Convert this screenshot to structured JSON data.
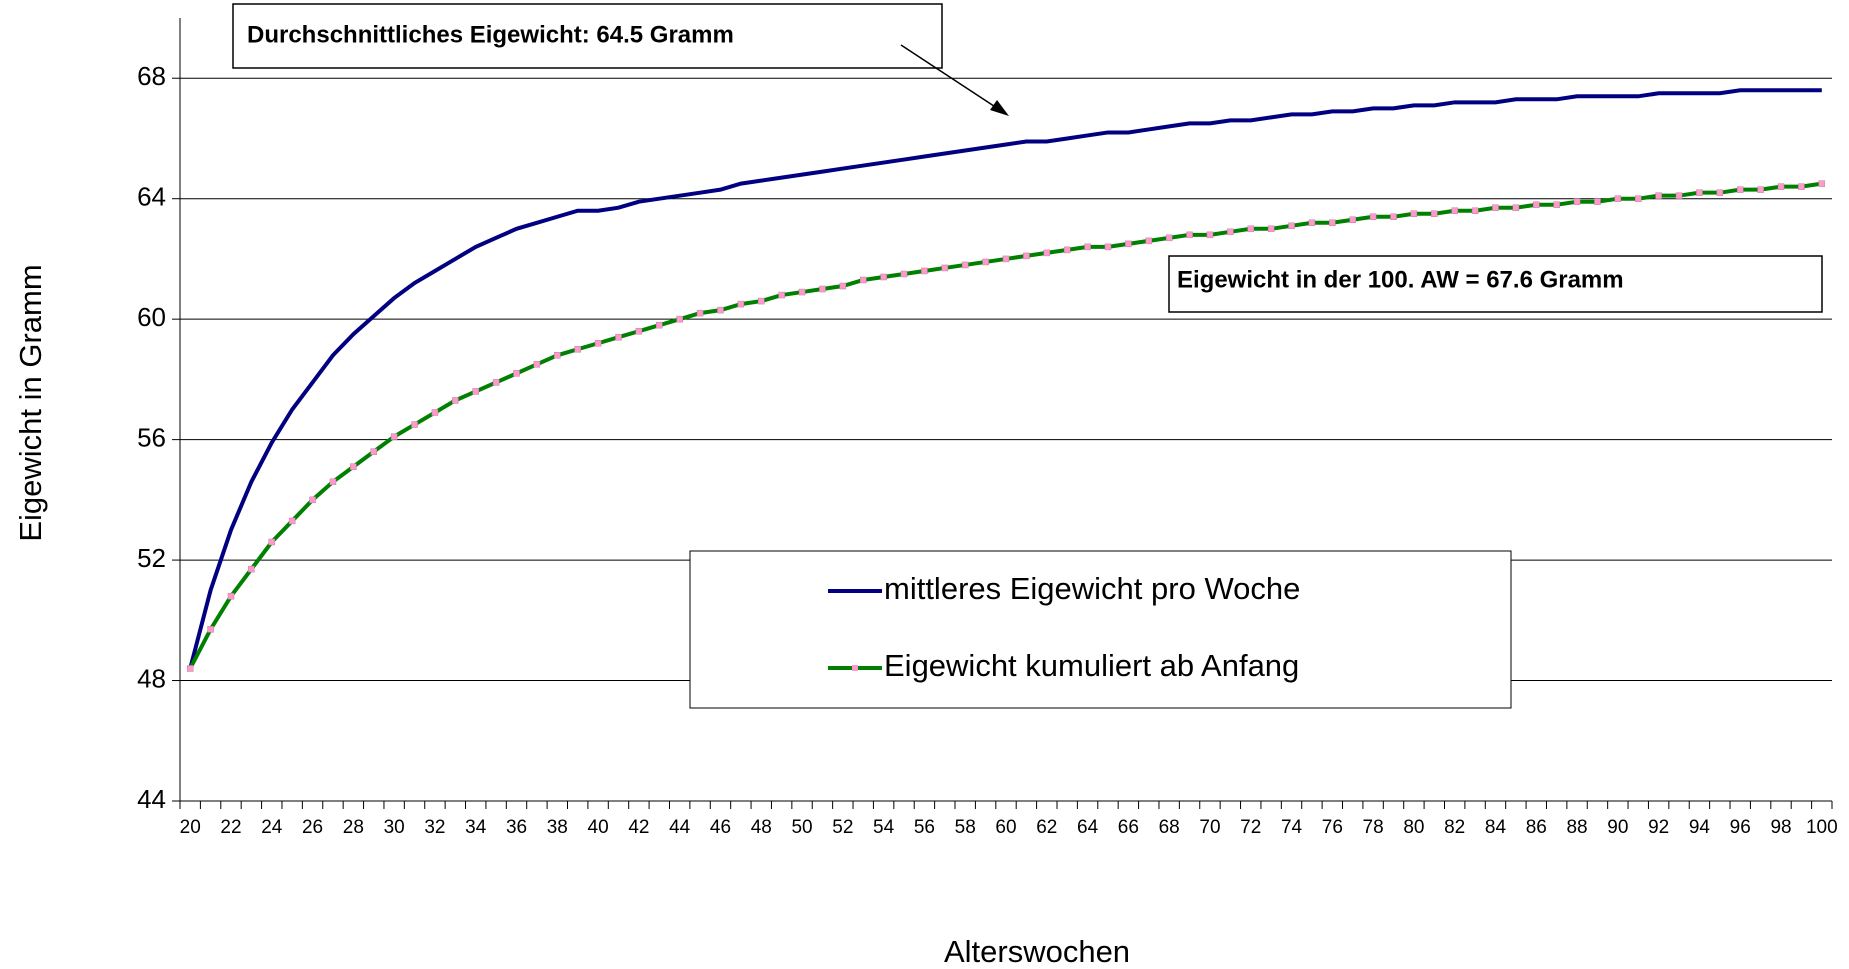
{
  "chart_data": {
    "type": "line",
    "y_label": "Eigewicht in Gramm",
    "x_label": "Alterswochen",
    "annotations": [
      {
        "text": "Durchschnittliches Eigewicht: 64.5 Gramm"
      },
      {
        "text": "Eigewicht in der 100. AW = 67.6 Gramm"
      }
    ],
    "categories": [
      20,
      null,
      22,
      null,
      24,
      null,
      26,
      null,
      28,
      null,
      30,
      null,
      32,
      null,
      34,
      null,
      36,
      null,
      38,
      null,
      40,
      null,
      42,
      null,
      44,
      null,
      46,
      null,
      48,
      null,
      50,
      null,
      52,
      null,
      54,
      null,
      56,
      null,
      58,
      null,
      60,
      null,
      62,
      null,
      64,
      null,
      66,
      null,
      68,
      null,
      70,
      null,
      72,
      null,
      74,
      null,
      76,
      null,
      78,
      null,
      80,
      null,
      82,
      null,
      84,
      null,
      86,
      null,
      88,
      null,
      90,
      null,
      92,
      null,
      94,
      null,
      96,
      null,
      98,
      null,
      100
    ],
    "series": [
      {
        "name": "mittleres Eigewicht pro Woche",
        "color": "#000080",
        "marker": false,
        "values": [
          48.4,
          51.0,
          53.0,
          54.6,
          55.9,
          57.0,
          57.9,
          58.8,
          59.5,
          60.1,
          60.7,
          61.2,
          61.6,
          62.0,
          62.4,
          62.7,
          63.0,
          63.2,
          63.4,
          63.6,
          63.6,
          63.7,
          63.9,
          64.0,
          64.1,
          64.2,
          64.3,
          64.5,
          64.6,
          64.7,
          64.8,
          64.9,
          65.0,
          65.1,
          65.2,
          65.3,
          65.4,
          65.5,
          65.6,
          65.7,
          65.8,
          65.9,
          65.9,
          66.0,
          66.1,
          66.2,
          66.2,
          66.3,
          66.4,
          66.5,
          66.5,
          66.6,
          66.6,
          66.7,
          66.8,
          66.8,
          66.9,
          66.9,
          67.0,
          67.0,
          67.1,
          67.1,
          67.2,
          67.2,
          67.2,
          67.3,
          67.3,
          67.3,
          67.4,
          67.4,
          67.4,
          67.4,
          67.5,
          67.5,
          67.5,
          67.5,
          67.6,
          67.6,
          67.6,
          67.6,
          67.6
        ]
      },
      {
        "name": "Eigewicht kumuliert ab Anfang",
        "color": "#008000",
        "marker": true,
        "marker_color": "#ff99cc",
        "values": [
          48.4,
          49.7,
          50.8,
          51.7,
          52.6,
          53.3,
          54.0,
          54.6,
          55.1,
          55.6,
          56.1,
          56.5,
          56.9,
          57.3,
          57.6,
          57.9,
          58.2,
          58.5,
          58.8,
          59.0,
          59.2,
          59.4,
          59.6,
          59.8,
          60.0,
          60.2,
          60.3,
          60.5,
          60.6,
          60.8,
          60.9,
          61.0,
          61.1,
          61.3,
          61.4,
          61.5,
          61.6,
          61.7,
          61.8,
          61.9,
          62.0,
          62.1,
          62.2,
          62.3,
          62.4,
          62.4,
          62.5,
          62.6,
          62.7,
          62.8,
          62.8,
          62.9,
          63.0,
          63.0,
          63.1,
          63.2,
          63.2,
          63.3,
          63.4,
          63.4,
          63.5,
          63.5,
          63.6,
          63.6,
          63.7,
          63.7,
          63.8,
          63.8,
          63.9,
          63.9,
          64.0,
          64.0,
          64.1,
          64.1,
          64.2,
          64.2,
          64.3,
          64.3,
          64.4,
          64.4,
          64.5
        ]
      }
    ],
    "ylim": [
      44,
      70
    ],
    "yticks": [
      44,
      48,
      52,
      56,
      60,
      64,
      68
    ],
    "grid": true
  }
}
